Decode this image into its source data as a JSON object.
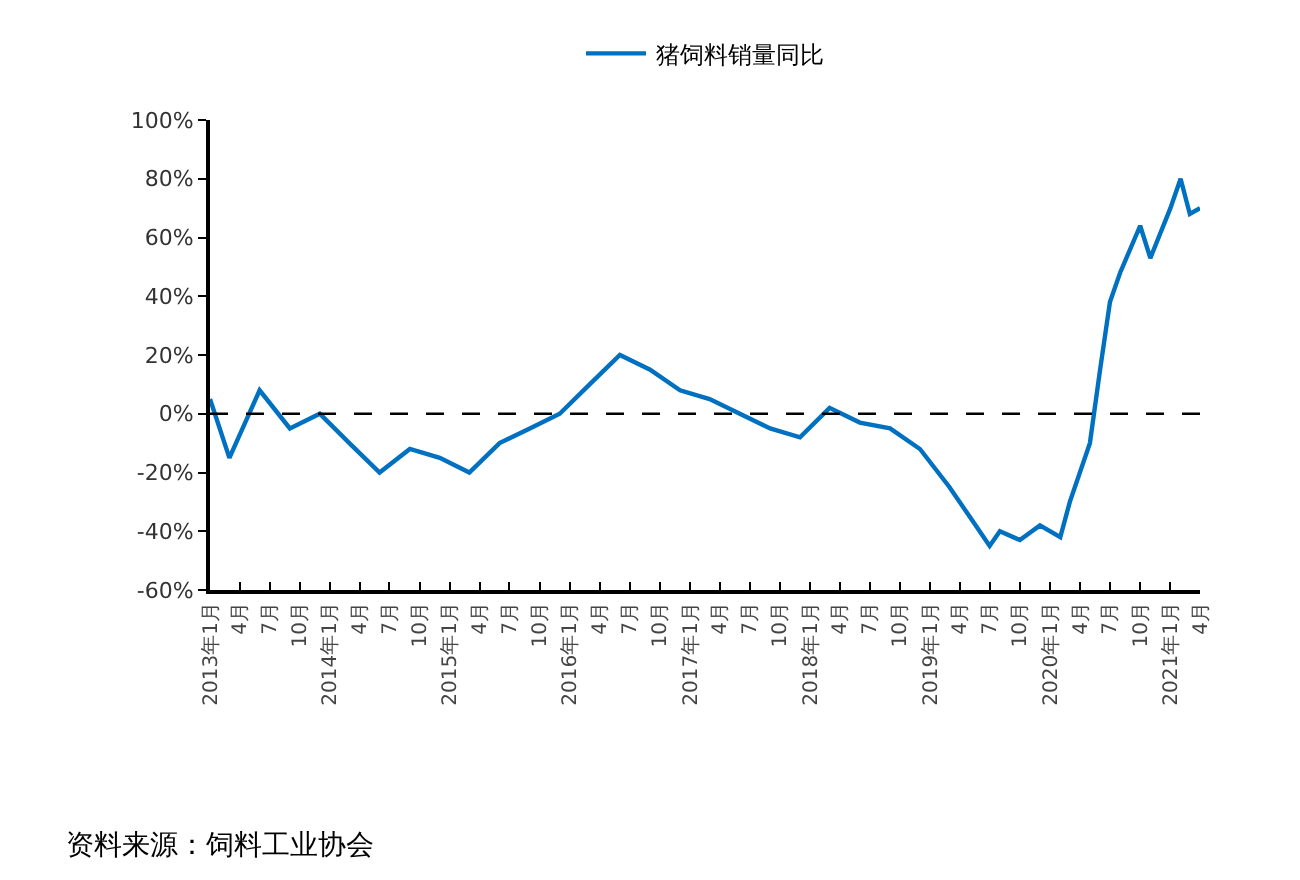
{
  "chart_data": {
    "type": "line",
    "legend": "top",
    "grid": false,
    "marker": "none",
    "line_style": "solid",
    "x": [
      "2013-01",
      "2013-03",
      "2013-06",
      "2013-09",
      "2013-12",
      "2014-03",
      "2014-06",
      "2014-09",
      "2014-12",
      "2015-03",
      "2015-06",
      "2015-09",
      "2015-12",
      "2016-03",
      "2016-06",
      "2016-09",
      "2016-12",
      "2017-03",
      "2017-06",
      "2017-09",
      "2017-12",
      "2018-03",
      "2018-06",
      "2018-09",
      "2018-12",
      "2019-03",
      "2019-05",
      "2019-07",
      "2019-08",
      "2019-10",
      "2019-12",
      "2020-02",
      "2020-03",
      "2020-05",
      "2020-06",
      "2020-07",
      "2020-08",
      "2020-10",
      "2020-11",
      "2021-01",
      "2021-02",
      "2021-03",
      "2021-04"
    ],
    "series": [
      {
        "name": "猪饲料销量同比",
        "color": "#0070c0",
        "values": [
          5,
          -15,
          8,
          -5,
          0,
          -10,
          -20,
          -12,
          -15,
          -20,
          -10,
          -5,
          0,
          10,
          20,
          15,
          8,
          5,
          0,
          -5,
          -8,
          2,
          -3,
          -5,
          -12,
          -25,
          -35,
          -45,
          -40,
          -43,
          -38,
          -42,
          -30,
          -10,
          15,
          38,
          48,
          64,
          53,
          70,
          80,
          68,
          70
        ]
      }
    ],
    "xlim": [
      "2013-01",
      "2021-04"
    ],
    "xticks": [
      {
        "value": "2013-01",
        "label": "2013年1月"
      },
      {
        "value": "2013-04",
        "label": "4月"
      },
      {
        "value": "2013-07",
        "label": "7月"
      },
      {
        "value": "2013-10",
        "label": "10月"
      },
      {
        "value": "2014-01",
        "label": "2014年1月"
      },
      {
        "value": "2014-04",
        "label": "4月"
      },
      {
        "value": "2014-07",
        "label": "7月"
      },
      {
        "value": "2014-10",
        "label": "10月"
      },
      {
        "value": "2015-01",
        "label": "2015年1月"
      },
      {
        "value": "2015-04",
        "label": "4月"
      },
      {
        "value": "2015-07",
        "label": "7月"
      },
      {
        "value": "2015-10",
        "label": "10月"
      },
      {
        "value": "2016-01",
        "label": "2016年1月"
      },
      {
        "value": "2016-04",
        "label": "4月"
      },
      {
        "value": "2016-07",
        "label": "7月"
      },
      {
        "value": "2016-10",
        "label": "10月"
      },
      {
        "value": "2017-01",
        "label": "2017年1月"
      },
      {
        "value": "2017-04",
        "label": "4月"
      },
      {
        "value": "2017-07",
        "label": "7月"
      },
      {
        "value": "2017-10",
        "label": "10月"
      },
      {
        "value": "2018-01",
        "label": "2018年1月"
      },
      {
        "value": "2018-04",
        "label": "4月"
      },
      {
        "value": "2018-07",
        "label": "7月"
      },
      {
        "value": "2018-10",
        "label": "10月"
      },
      {
        "value": "2019-01",
        "label": "2019年1月"
      },
      {
        "value": "2019-04",
        "label": "4月"
      },
      {
        "value": "2019-07",
        "label": "7月"
      },
      {
        "value": "2019-10",
        "label": "10月"
      },
      {
        "value": "2020-01",
        "label": "2020年1月"
      },
      {
        "value": "2020-04",
        "label": "4月"
      },
      {
        "value": "2020-07",
        "label": "7月"
      },
      {
        "value": "2020-10",
        "label": "10月"
      },
      {
        "value": "2021-01",
        "label": "2021年1月"
      },
      {
        "value": "2021-04",
        "label": "4月"
      }
    ],
    "ylim": [
      -60,
      100
    ],
    "yticks": [
      {
        "value": -60,
        "label": "-60%"
      },
      {
        "value": -40,
        "label": "-40%"
      },
      {
        "value": -20,
        "label": "-20%"
      },
      {
        "value": 0,
        "label": "0%"
      },
      {
        "value": 20,
        "label": "20%"
      },
      {
        "value": 40,
        "label": "40%"
      },
      {
        "value": 60,
        "label": "60%"
      },
      {
        "value": 80,
        "label": "80%"
      },
      {
        "value": 100,
        "label": "100%"
      }
    ],
    "ref_lines": [
      {
        "axis": "y",
        "value": 0,
        "color": "#000000",
        "line_style": "dashed"
      }
    ],
    "annotations": [
      "资料来源：饲料工业协会"
    ]
  }
}
